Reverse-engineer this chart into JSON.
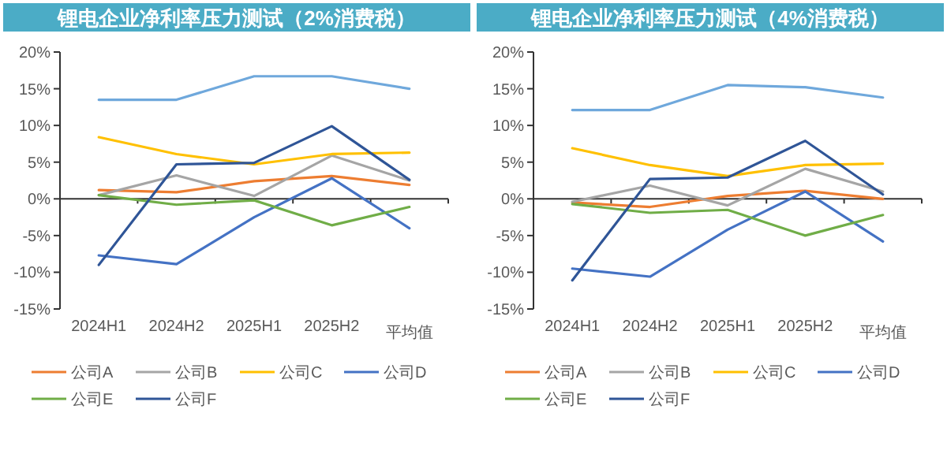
{
  "chart_data": [
    {
      "type": "line",
      "title": "锂电企业净利率压力测试（2%消费税）",
      "categories": [
        "2024H1",
        "2024H2",
        "2025H1",
        "2025H2",
        "平均值"
      ],
      "ylim": [
        -15,
        20
      ],
      "yticks": [
        {
          "value": -15,
          "label": "-15%"
        },
        {
          "value": -10,
          "label": "-10%"
        },
        {
          "value": -5,
          "label": "-5%"
        },
        {
          "value": 0,
          "label": "0%"
        },
        {
          "value": 5,
          "label": "5%"
        },
        {
          "value": 10,
          "label": "10%"
        },
        {
          "value": 15,
          "label": "15%"
        },
        {
          "value": 20,
          "label": "20%"
        }
      ],
      "legend": "bottom",
      "marker": "none",
      "series": [
        {
          "color": "#6fa8dc",
          "values": [
            13.5,
            13.5,
            16.7,
            16.7,
            15.0
          ]
        },
        {
          "name": "公司A",
          "color": "#ed7d31",
          "values": [
            1.2,
            0.9,
            2.4,
            3.1,
            1.9
          ]
        },
        {
          "name": "公司B",
          "color": "#a5a5a5",
          "values": [
            0.5,
            3.2,
            0.4,
            5.9,
            2.5
          ]
        },
        {
          "name": "公司C",
          "color": "#ffc000",
          "values": [
            8.4,
            6.1,
            4.7,
            6.1,
            6.3
          ]
        },
        {
          "name": "公司D",
          "color": "#4472c4",
          "values": [
            -7.7,
            -8.9,
            -2.5,
            2.8,
            -4.0
          ]
        },
        {
          "name": "公司E",
          "color": "#70ad47",
          "values": [
            0.5,
            -0.8,
            -0.2,
            -3.6,
            -1.1
          ]
        },
        {
          "name": "公司F",
          "color": "#2f5597",
          "values": [
            -9.0,
            4.7,
            4.9,
            9.9,
            2.6
          ]
        }
      ]
    },
    {
      "type": "line",
      "title": "锂电企业净利率压力测试（4%消费税）",
      "categories": [
        "2024H1",
        "2024H2",
        "2025H1",
        "2025H2",
        "平均值"
      ],
      "ylim": [
        -15,
        20
      ],
      "yticks": [
        {
          "value": -15,
          "label": "-15%"
        },
        {
          "value": -10,
          "label": "-10%"
        },
        {
          "value": -5,
          "label": "-5%"
        },
        {
          "value": 0,
          "label": "0%"
        },
        {
          "value": 5,
          "label": "5%"
        },
        {
          "value": 10,
          "label": "10%"
        },
        {
          "value": 15,
          "label": "15%"
        },
        {
          "value": 20,
          "label": "20%"
        }
      ],
      "legend": "bottom",
      "marker": "none",
      "series": [
        {
          "color": "#6fa8dc",
          "values": [
            12.1,
            12.1,
            15.5,
            15.2,
            13.8
          ]
        },
        {
          "name": "公司A",
          "color": "#ed7d31",
          "values": [
            -0.5,
            -1.1,
            0.4,
            1.1,
            0.0
          ]
        },
        {
          "name": "公司B",
          "color": "#a5a5a5",
          "values": [
            -0.4,
            1.8,
            -0.9,
            4.1,
            1.0
          ]
        },
        {
          "name": "公司C",
          "color": "#ffc000",
          "values": [
            6.9,
            4.6,
            3.1,
            4.6,
            4.8
          ]
        },
        {
          "name": "公司D",
          "color": "#4472c4",
          "values": [
            -9.5,
            -10.6,
            -4.2,
            1.0,
            -5.8
          ]
        },
        {
          "name": "公司E",
          "color": "#70ad47",
          "values": [
            -0.7,
            -1.9,
            -1.5,
            -5.0,
            -2.2
          ]
        },
        {
          "name": "公司F",
          "color": "#2f5597",
          "values": [
            -11.1,
            2.7,
            2.9,
            7.9,
            0.6
          ]
        }
      ]
    }
  ]
}
